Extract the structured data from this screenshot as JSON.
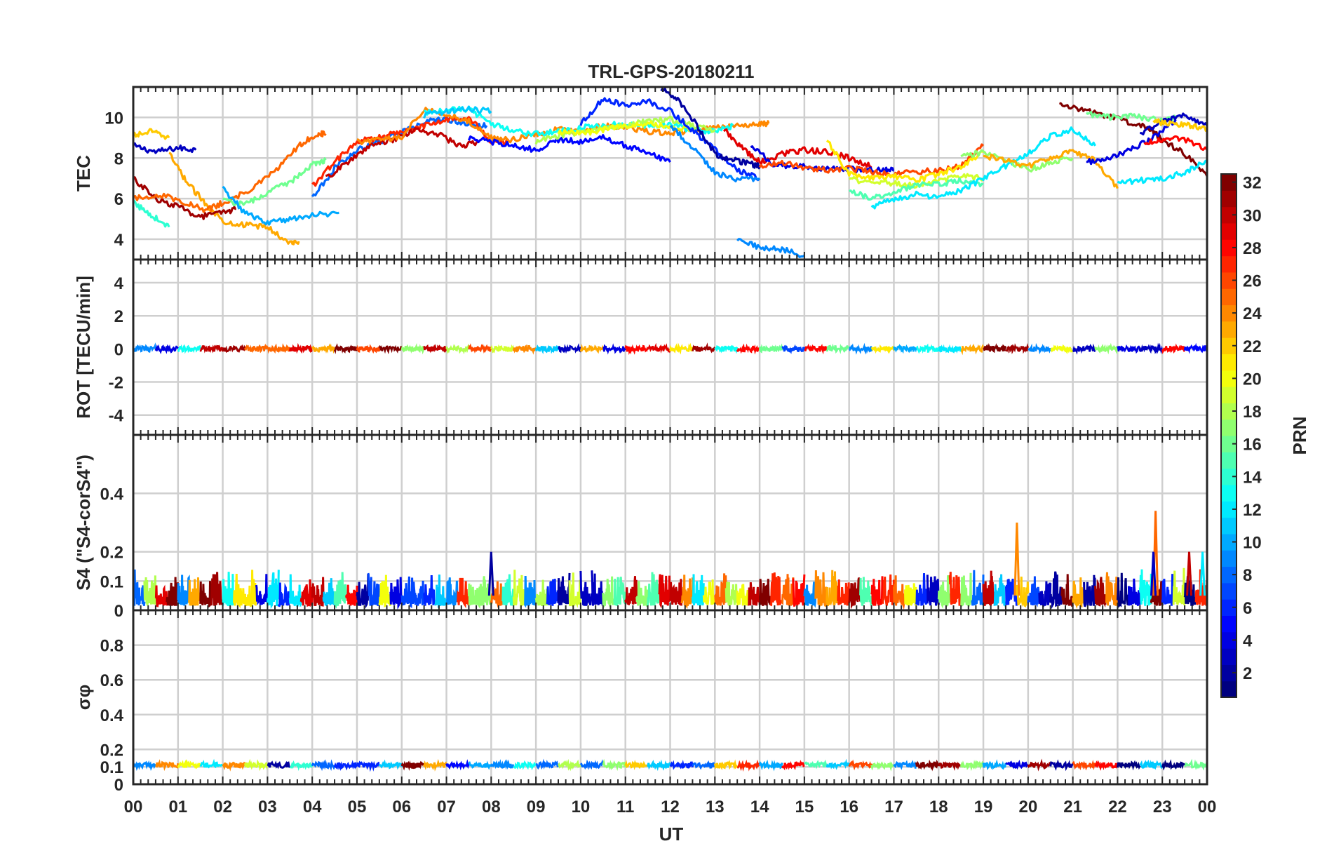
{
  "chart_data": {
    "type": "line",
    "title": "TRL-GPS-20180211",
    "xlabel": "UT",
    "x_tick_labels": [
      "00",
      "01",
      "02",
      "03",
      "04",
      "05",
      "06",
      "07",
      "08",
      "09",
      "10",
      "11",
      "12",
      "13",
      "14",
      "15",
      "16",
      "17",
      "18",
      "19",
      "20",
      "21",
      "22",
      "23",
      "00"
    ],
    "xlim": [
      0,
      24
    ],
    "colormap": "jet",
    "colorbar": {
      "label": "PRN",
      "range": [
        1,
        32
      ],
      "tick_labels": [
        "2",
        "4",
        "6",
        "8",
        "10",
        "12",
        "14",
        "16",
        "18",
        "20",
        "22",
        "24",
        "26",
        "28",
        "30",
        "32"
      ]
    },
    "panels": [
      {
        "id": "tec",
        "ylabel": "TEC",
        "ylim": [
          3,
          11.5
        ],
        "y_tick_labels": [
          "4",
          "6",
          "8",
          "10"
        ],
        "series": [
          {
            "prn": 3,
            "x": [
              0,
              0.5,
              1,
              1.4
            ],
            "y": [
              8.6,
              8.3,
              8.5,
              8.4
            ]
          },
          {
            "prn": 22,
            "x": [
              0,
              0.4,
              0.8
            ],
            "y": [
              9.1,
              9.3,
              9.0
            ]
          },
          {
            "prn": 23,
            "x": [
              0.8,
              1.2,
              1.6,
              2.0,
              2.5,
              3.0,
              3.5,
              3.7
            ],
            "y": [
              8.2,
              6.8,
              5.8,
              4.9,
              4.7,
              4.6,
              3.8,
              3.9
            ]
          },
          {
            "prn": 14,
            "x": [
              0,
              0.4,
              0.8
            ],
            "y": [
              5.8,
              5.2,
              4.6
            ]
          },
          {
            "prn": 31,
            "x": [
              0,
              0.5,
              1.0,
              1.5,
              2.0,
              2.3
            ],
            "y": [
              7.0,
              6.0,
              5.6,
              5.1,
              5.3,
              5.5
            ]
          },
          {
            "prn": 25,
            "x": [
              0,
              0.6,
              1.2,
              1.6,
              2.0,
              2.6,
              3.2,
              3.7,
              4.1,
              4.3
            ],
            "y": [
              6.0,
              6.2,
              5.8,
              5.4,
              5.8,
              6.4,
              7.4,
              8.6,
              9.2,
              9.2
            ]
          },
          {
            "prn": 16,
            "x": [
              2.0,
              2.5,
              3.0,
              3.5,
              4.0,
              4.3
            ],
            "y": [
              5.9,
              5.7,
              6.3,
              6.8,
              7.7,
              7.9
            ]
          },
          {
            "prn": 10,
            "x": [
              2.0,
              2.5,
              3.0,
              3.5,
              4.0,
              4.6
            ],
            "y": [
              6.5,
              5.3,
              4.8,
              5.0,
              5.2,
              5.3
            ]
          },
          {
            "prn": 8,
            "x": [
              4.0,
              4.5,
              5.0,
              5.5,
              6.0,
              6.5,
              7.0,
              7.5,
              7.9
            ],
            "y": [
              6.0,
              7.5,
              8.4,
              8.8,
              9.3,
              9.8,
              9.9,
              9.7,
              9.6
            ]
          },
          {
            "prn": 27,
            "x": [
              4.0,
              4.5,
              5.0,
              5.5,
              6.0,
              6.5,
              7.0,
              7.5,
              8.0,
              8.4
            ],
            "y": [
              6.6,
              7.8,
              8.8,
              9.0,
              9.3,
              9.6,
              9.9,
              10.0,
              8.8,
              8.8
            ]
          },
          {
            "prn": 30,
            "x": [
              4.3,
              4.8,
              5.3,
              5.8,
              6.3,
              6.8,
              7.3,
              7.7
            ],
            "y": [
              7.0,
              7.8,
              8.6,
              8.9,
              9.4,
              9.2,
              8.6,
              8.8
            ]
          },
          {
            "prn": 24,
            "x": [
              5.0,
              5.5,
              6.0,
              6.5,
              7.0,
              7.5,
              8.0,
              8.5,
              9.0,
              9.5,
              10.0,
              10.5,
              11.0,
              11.5,
              12.0,
              12.5,
              13.0,
              13.5,
              14.0,
              14.2
            ],
            "y": [
              8.8,
              8.9,
              9.0,
              10.4,
              10.2,
              9.8,
              9.0,
              8.9,
              9.2,
              9.4,
              9.3,
              9.6,
              9.5,
              9.3,
              9.2,
              9.4,
              9.5,
              9.6,
              9.7,
              9.7
            ]
          },
          {
            "prn": 13,
            "x": [
              6.5,
              7.0,
              7.5,
              8.0,
              8.5,
              9.0,
              9.5,
              10.0,
              10.5,
              11.0,
              11.5,
              12.0,
              12.5,
              13.0,
              13.4
            ],
            "y": [
              10.2,
              10.4,
              10.4,
              9.7,
              9.3,
              9.2,
              9.3,
              9.5,
              9.6,
              9.7,
              9.6,
              9.6,
              9.4,
              9.3,
              9.6
            ]
          },
          {
            "prn": 11,
            "x": [
              6.5,
              7.0,
              7.5,
              8.0
            ],
            "y": [
              10.1,
              10.3,
              10.4,
              10.3
            ]
          },
          {
            "prn": 5,
            "x": [
              7.5,
              8.0,
              8.5,
              9.0,
              9.5,
              10.0,
              10.5,
              11.0,
              11.5,
              12.0
            ],
            "y": [
              9.0,
              8.8,
              8.6,
              8.4,
              8.9,
              8.8,
              9.0,
              8.6,
              8.3,
              7.8
            ]
          },
          {
            "prn": 18,
            "x": [
              9.0,
              9.5,
              10.0,
              10.5,
              11.0,
              11.5,
              12.0,
              12.5,
              13.0
            ],
            "y": [
              8.8,
              9.1,
              9.3,
              9.5,
              9.6,
              9.8,
              9.9,
              9.6,
              9.4
            ]
          },
          {
            "prn": 20,
            "x": [
              9.5,
              10.0,
              10.5,
              11.0,
              11.5,
              12.0,
              12.5
            ],
            "y": [
              9.3,
              9.2,
              9.4,
              9.6,
              9.7,
              9.5,
              9.4
            ]
          },
          {
            "prn": 6,
            "x": [
              10.0,
              10.5,
              11.0,
              11.5,
              12.0,
              12.5,
              13.0,
              13.5,
              14.0
            ],
            "y": [
              9.7,
              10.9,
              10.6,
              10.8,
              10.3,
              9.4,
              8.4,
              7.4,
              7.0
            ]
          },
          {
            "prn": 2,
            "x": [
              11.8,
              12.2,
              12.6,
              13.0,
              13.4,
              13.8,
              14.0
            ],
            "y": [
              11.4,
              10.8,
              9.6,
              8.2,
              7.9,
              7.7,
              7.6
            ]
          },
          {
            "prn": 9,
            "x": [
              12.0,
              12.5,
              13.0,
              13.5,
              14.0
            ],
            "y": [
              9.6,
              8.5,
              7.3,
              6.9,
              7.0
            ]
          },
          {
            "prn": 29,
            "x": [
              13.2,
              13.6,
              14.0,
              14.5,
              15.0,
              15.5,
              16.0,
              16.5
            ],
            "y": [
              9.4,
              8.5,
              7.8,
              8.2,
              8.4,
              8.3,
              8.0,
              7.6
            ]
          },
          {
            "prn": 9,
            "x": [
              13.5,
              14.0,
              14.5,
              15.0
            ],
            "y": [
              4.0,
              3.6,
              3.5,
              3.2
            ]
          },
          {
            "prn": 4,
            "x": [
              13.8,
              14.3,
              14.8,
              15.3,
              15.8,
              16.3,
              16.8,
              17.0
            ],
            "y": [
              8.6,
              7.7,
              7.6,
              7.5,
              7.5,
              7.4,
              7.4,
              7.4
            ]
          },
          {
            "prn": 26,
            "x": [
              14.0,
              14.5,
              15.0,
              15.5,
              16.0,
              16.5,
              17.0,
              17.5,
              18.0,
              18.5,
              19.0
            ],
            "y": [
              7.6,
              7.8,
              7.5,
              7.4,
              7.5,
              7.3,
              7.2,
              7.3,
              7.4,
              7.6,
              8.6
            ]
          },
          {
            "prn": 21,
            "x": [
              15.5,
              16.0,
              16.5,
              17.0,
              17.5,
              18.0,
              18.5,
              19.0
            ],
            "y": [
              8.9,
              7.2,
              7.0,
              7.1,
              6.9,
              7.2,
              7.6,
              8.3
            ]
          },
          {
            "prn": 19,
            "x": [
              16.0,
              16.5,
              17.0,
              17.5,
              18.0,
              18.5,
              19.0
            ],
            "y": [
              7.0,
              6.7,
              6.8,
              6.6,
              6.9,
              7.1,
              7.0
            ]
          },
          {
            "prn": 15,
            "x": [
              16.0,
              16.5,
              17.0,
              17.5,
              18.0,
              18.5,
              19.0
            ],
            "y": [
              6.4,
              6.0,
              6.3,
              6.7,
              6.7,
              6.9,
              6.7
            ]
          },
          {
            "prn": 12,
            "x": [
              16.5,
              17.0,
              17.5,
              18.0,
              18.5,
              19.0,
              19.5,
              20.0,
              20.5,
              21.0,
              21.5
            ],
            "y": [
              5.6,
              6.0,
              6.2,
              6.1,
              6.4,
              7.0,
              7.6,
              8.2,
              9.1,
              9.4,
              8.6
            ]
          },
          {
            "prn": 17,
            "x": [
              18.5,
              19.0,
              19.5,
              20.0,
              20.5,
              21.0
            ],
            "y": [
              8.1,
              8.3,
              7.9,
              7.4,
              7.8,
              8.0
            ]
          },
          {
            "prn": 23,
            "x": [
              19.0,
              19.5,
              20.0,
              20.5,
              21.0,
              21.5,
              22.0
            ],
            "y": [
              8.1,
              7.9,
              7.6,
              8.0,
              8.3,
              7.9,
              6.5
            ]
          },
          {
            "prn": 32,
            "x": [
              20.7,
              21.2,
              21.7,
              22.2,
              22.7,
              23.0,
              23.5,
              24.0
            ],
            "y": [
              10.7,
              10.4,
              10.1,
              9.8,
              9.5,
              8.9,
              8.2,
              7.1
            ]
          },
          {
            "prn": 4,
            "x": [
              21.3,
              21.8,
              22.3,
              22.8,
              23.3
            ],
            "y": [
              7.8,
              8.0,
              8.4,
              9.0,
              9.9
            ]
          },
          {
            "prn": 16,
            "x": [
              21.3,
              21.8,
              22.3,
              22.8,
              23.3
            ],
            "y": [
              10.2,
              10.0,
              10.1,
              9.9,
              10.0
            ]
          },
          {
            "prn": 12,
            "x": [
              22.0,
              22.5,
              23.0,
              23.5,
              24.0
            ],
            "y": [
              6.8,
              6.9,
              7.0,
              7.3,
              7.9
            ]
          },
          {
            "prn": 3,
            "x": [
              22.5,
              23.0,
              23.5,
              24.0
            ],
            "y": [
              9.2,
              9.8,
              10.1,
              9.6
            ]
          },
          {
            "prn": 22,
            "x": [
              22.8,
              23.2,
              23.6,
              24.0
            ],
            "y": [
              9.8,
              9.7,
              9.6,
              9.4
            ]
          },
          {
            "prn": 28,
            "x": [
              22.6,
              23.0,
              23.4,
              24.0
            ],
            "y": [
              8.7,
              8.9,
              9.0,
              8.4
            ]
          }
        ]
      },
      {
        "id": "rot",
        "ylabel": "ROT [TECU/min]",
        "ylim": [
          -5.2,
          5.4
        ],
        "y_tick_labels": [
          "-4",
          "-2",
          "0",
          "2",
          "4"
        ],
        "note": "All satellites stay within about ±0.3 TECU/min of zero across the day"
      },
      {
        "id": "s4",
        "ylabel": "S4 (\"S4-corS4\")",
        "ylim": [
          0,
          0.6
        ],
        "y_tick_labels": [
          "0",
          "0.1",
          "0.2",
          "0.4"
        ],
        "background_level": "0.02-0.14",
        "peaks": [
          {
            "x": 19.75,
            "y": 0.3,
            "prn": 24
          },
          {
            "x": 22.85,
            "y": 0.34,
            "prn": 25
          },
          {
            "x": 22.8,
            "y": 0.2,
            "prn": 3
          },
          {
            "x": 8.0,
            "y": 0.2,
            "prn": 2
          },
          {
            "x": 23.9,
            "y": 0.2,
            "prn": 12
          },
          {
            "x": 23.6,
            "y": 0.2,
            "prn": 30
          }
        ]
      },
      {
        "id": "sigma_phi",
        "ylabel": "σφ",
        "ylim": [
          0,
          1.0
        ],
        "y_tick_labels": [
          "0",
          "0.1",
          "0.2",
          "0.4",
          "0.6",
          "0.8"
        ],
        "baseline": 0.11,
        "range": "0.09-0.17"
      }
    ]
  }
}
